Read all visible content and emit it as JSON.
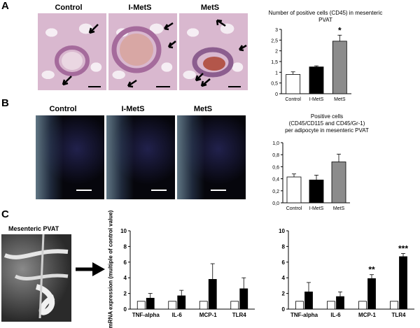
{
  "panel_a": {
    "letter": "A",
    "image_labels": [
      "Control",
      "I-MetS",
      "MetS"
    ],
    "chart_data": {
      "type": "bar",
      "title": "Number of positive cells (CD45) in mesenteric PVAT",
      "categories": [
        "Control",
        "I-MetS",
        "MetS"
      ],
      "values": [
        0.9,
        1.25,
        2.45
      ],
      "errors": [
        0.12,
        0.05,
        0.28
      ],
      "colors": [
        "#ffffff",
        "#000000",
        "#8c8c8c"
      ],
      "ylim": [
        0,
        3
      ],
      "yticks": [
        "0",
        "0,5",
        "1",
        "1,5",
        "2",
        "2,5",
        "3"
      ],
      "annotations": [
        {
          "category": "MetS",
          "text": "*"
        }
      ]
    }
  },
  "panel_b": {
    "letter": "B",
    "image_labels": [
      "Control",
      "I-MetS",
      "MetS"
    ],
    "chart_data": {
      "type": "bar",
      "title_lines": [
        "Positive cells",
        "(CD45/CD115 and CD45/Gr-1)",
        "per adipocyte in mesenteric PVAT"
      ],
      "categories": [
        "Control",
        "I-MetS",
        "MetS"
      ],
      "values": [
        0.43,
        0.38,
        0.68
      ],
      "errors": [
        0.05,
        0.08,
        0.13
      ],
      "colors": [
        "#ffffff",
        "#000000",
        "#8c8c8c"
      ],
      "ylim": [
        0,
        1
      ],
      "yticks": [
        "0,0",
        "0,2",
        "0,4",
        "0,6",
        "0,8",
        "1,0"
      ]
    }
  },
  "panel_c": {
    "letter": "C",
    "photo_label": "Mesenteric  PVAT",
    "chart_data": [
      {
        "type": "bar",
        "ylabel": "mRNA expression (multiple of control value)",
        "categories": [
          "TNF-alpha",
          "IL-6",
          "MCP-1",
          "TLR4"
        ],
        "series": [
          {
            "values": [
              1,
              1,
              1,
              1
            ],
            "errors": [
              0,
              0,
              0,
              0
            ],
            "color": "#ffffff"
          },
          {
            "values": [
              1.4,
              1.7,
              3.8,
              2.6
            ],
            "errors": [
              0.6,
              0.7,
              2.0,
              1.4
            ],
            "color": "#000000"
          }
        ],
        "ylim": [
          0,
          10
        ],
        "yticks": [
          "0",
          "2",
          "4",
          "6",
          "8",
          "10"
        ],
        "annotations": []
      },
      {
        "type": "bar",
        "categories": [
          "TNF-alpha",
          "IL-6",
          "MCP-1",
          "TLR4"
        ],
        "series": [
          {
            "values": [
              1,
              1,
              1,
              1
            ],
            "errors": [
              0,
              0,
              0,
              0
            ],
            "color": "#ffffff"
          },
          {
            "values": [
              2.2,
              1.6,
              3.9,
              6.7
            ],
            "errors": [
              1.2,
              0.6,
              0.5,
              0.4
            ],
            "color": "#000000"
          }
        ],
        "ylim": [
          0,
          10
        ],
        "yticks": [
          "0",
          "2",
          "4",
          "6",
          "8",
          "10"
        ],
        "annotations": [
          {
            "category": "MCP-1",
            "text": "**"
          },
          {
            "category": "TLR4",
            "text": "***"
          }
        ]
      }
    ]
  }
}
